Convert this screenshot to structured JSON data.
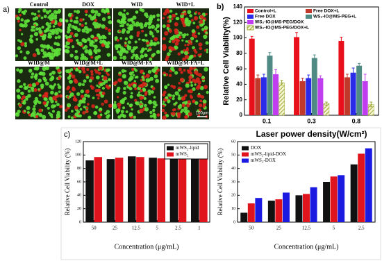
{
  "panel_labels": [
    "a)",
    "b)",
    "c)"
  ],
  "panel_a": {
    "labels": [
      "Control",
      "DOX",
      "WID",
      "WID+L",
      "WID@M",
      "WID@M+L",
      "WID@M-FA",
      "WID@M-FA+L"
    ],
    "scale_bar": "100μm"
  },
  "chart_data": [
    {
      "type": "bar",
      "y_label": "Relative Cell Viability(%)",
      "x_label": "Laser power density(W/cm²)",
      "categories": [
        "0.1",
        "0.3",
        "0.8"
      ],
      "ylim": [
        0,
        140
      ],
      "yticks": [
        0,
        20,
        40,
        60,
        80,
        100,
        120,
        140
      ],
      "legend": "top",
      "series": [
        {
          "name": "Control+L",
          "color": "#e8101a",
          "values": [
            99,
            101,
            96
          ],
          "errors": [
            3,
            6,
            5
          ]
        },
        {
          "name": "Free DOX+L",
          "color": "#c0392b",
          "values": [
            48,
            44,
            49
          ],
          "errors": [
            4,
            4,
            4
          ]
        },
        {
          "name": "Free DOX",
          "color": "#2a2ae8",
          "values": [
            49,
            48,
            55
          ],
          "errors": [
            4,
            4,
            6
          ]
        },
        {
          "name": "WS₂-IO@MS-PEG+L",
          "color": "#4f8a85",
          "values": [
            77,
            74,
            64
          ],
          "errors": [
            4,
            4,
            3
          ]
        },
        {
          "name": "WS₂-IO@MS-PEG/DOX",
          "color": "#c03ef0",
          "values": [
            53,
            48,
            44
          ],
          "errors": [
            6,
            3,
            9
          ]
        },
        {
          "name": "WS₂-IO@MS-PEG/DOX+L",
          "color": "#9aa832",
          "hatch": true,
          "values": [
            42,
            15,
            14
          ],
          "errors": [
            3,
            2,
            3
          ]
        }
      ]
    },
    {
      "type": "bar",
      "y_label": "Relative Cell Viability (%)",
      "x_label": "Concentration (μg/mL)",
      "categories": [
        "50",
        "25",
        "12.5",
        "5",
        "2.5",
        "1"
      ],
      "ylim": [
        0,
        120
      ],
      "yticks": [
        0,
        20,
        40,
        60,
        80,
        100,
        120
      ],
      "legend": "upper right",
      "series": [
        {
          "name": "mWS₂-lipid",
          "color": "#111111",
          "values": [
            92,
            94,
            98,
            96,
            97,
            101
          ]
        },
        {
          "name": "mWS₂",
          "color": "#e0141c",
          "values": [
            97,
            96,
            97,
            95,
            96,
            98
          ]
        }
      ]
    },
    {
      "type": "bar",
      "y_label": "Relative Cell Viability (%)",
      "x_label": "Concentration (μg/mL)",
      "categories": [
        "50",
        "25",
        "12.5",
        "5",
        "2.5"
      ],
      "ylim": [
        0,
        60
      ],
      "yticks": [
        0,
        10,
        20,
        30,
        40,
        50,
        60
      ],
      "legend": "upper left",
      "series": [
        {
          "name": "DOX",
          "color": "#111111",
          "values": [
            7,
            16,
            20,
            30,
            43
          ]
        },
        {
          "name": "mWS₂-lipid-DOX",
          "color": "#e0141c",
          "values": [
            14,
            17,
            21,
            34,
            51
          ]
        },
        {
          "name": "mWS₂-DOX",
          "color": "#1a1ae0",
          "values": [
            18,
            22,
            26,
            35,
            55
          ]
        }
      ]
    }
  ]
}
